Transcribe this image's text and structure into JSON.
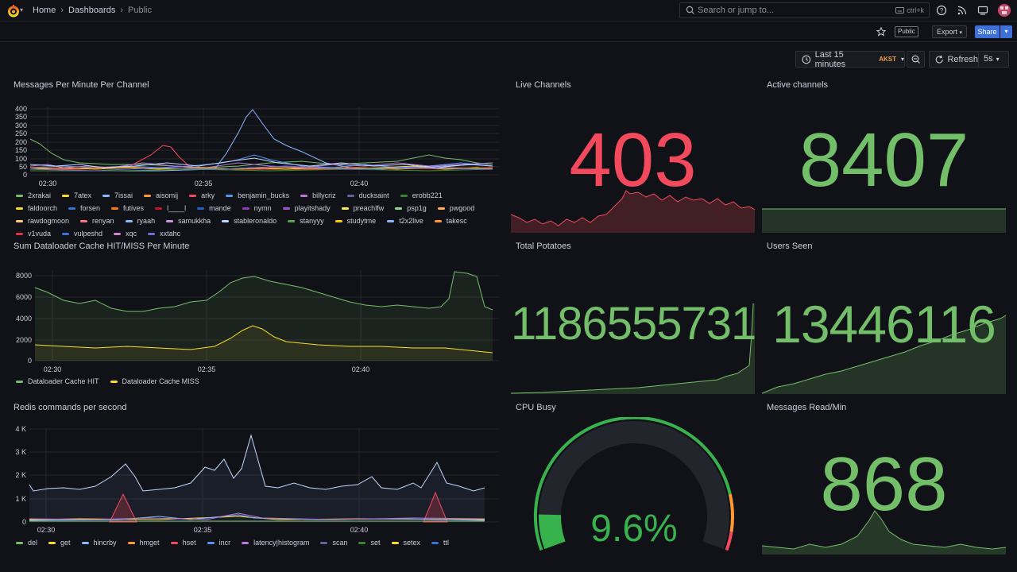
{
  "nav": {
    "breadcrumbs": [
      "Home",
      "Dashboards",
      "Public"
    ],
    "search_placeholder": "Search or jump to...",
    "search_shortcut": "ctrl+k"
  },
  "toolbar": {
    "public_tag": "Public",
    "export_label": "Export",
    "share_label": "Share"
  },
  "time": {
    "range": "Last 15 minutes",
    "timezone": "AKST",
    "refresh_label": "Refresh",
    "interval": "5s"
  },
  "colors": {
    "green": "#73bf69",
    "red": "#f2495c",
    "yellow": "#fade2a",
    "orange": "#ff9830",
    "blue": "#5794f2"
  },
  "panels": {
    "messages": {
      "title": "Messages Per Minute Per Channel",
      "y_ticks": [
        "400",
        "350",
        "300",
        "250",
        "200",
        "150",
        "100",
        "50",
        "0"
      ],
      "x_ticks": [
        "02:30",
        "02:35",
        "02:40"
      ],
      "legend": [
        {
          "name": "2xrakai",
          "color": "#73bf69"
        },
        {
          "name": "7atex",
          "color": "#fade2a"
        },
        {
          "name": "7issai",
          "color": "#8ab8ff"
        },
        {
          "name": "aisomij",
          "color": "#ff9830"
        },
        {
          "name": "arky",
          "color": "#f2495c"
        },
        {
          "name": "benjamin_bucks",
          "color": "#5794f2"
        },
        {
          "name": "billycriz",
          "color": "#b877d9"
        },
        {
          "name": "ducksaint",
          "color": "#705da0"
        },
        {
          "name": "erobb221",
          "color": "#37872d"
        },
        {
          "name": "faldoorch",
          "color": "#fade2a"
        },
        {
          "name": "forsen",
          "color": "#3274d9"
        },
        {
          "name": "futives",
          "color": "#ff780a"
        },
        {
          "name": "l____l",
          "color": "#c4162a"
        },
        {
          "name": "mande",
          "color": "#1f60c4"
        },
        {
          "name": "nymn",
          "color": "#8f3bb8"
        },
        {
          "name": "playitshady",
          "color": "#a352cc"
        },
        {
          "name": "preachlfw",
          "color": "#ffee52"
        },
        {
          "name": "psp1g",
          "color": "#96d98d"
        },
        {
          "name": "pwgood",
          "color": "#ffb357"
        },
        {
          "name": "rawdogmoon",
          "color": "#ffcb7d"
        },
        {
          "name": "renyan",
          "color": "#ff7383"
        },
        {
          "name": "ryaah",
          "color": "#8ab8ff"
        },
        {
          "name": "samukkha",
          "color": "#ca95e5"
        },
        {
          "name": "stableronaldo",
          "color": "#c0d8ff"
        },
        {
          "name": "stanyyy",
          "color": "#56a64b"
        },
        {
          "name": "studytme",
          "color": "#f2cc0c"
        },
        {
          "name": "t2x2live",
          "color": "#8ab8ff"
        },
        {
          "name": "takesc",
          "color": "#ff9830"
        },
        {
          "name": "v1vuda",
          "color": "#e02f44"
        },
        {
          "name": "vulpeshd",
          "color": "#3274d9"
        },
        {
          "name": "xqc",
          "color": "#d683ce"
        },
        {
          "name": "xxtahc",
          "color": "#6e6fd6"
        }
      ]
    },
    "dataloader": {
      "title": "Sum Dataloader Cache HIT/MISS Per Minute",
      "y_ticks": [
        "8000",
        "6000",
        "4000",
        "2000",
        "0"
      ],
      "x_ticks": [
        "02:30",
        "02:35",
        "02:40"
      ],
      "legend": [
        {
          "name": "Dataloader Cache HIT",
          "color": "#73bf69"
        },
        {
          "name": "Dataloader Cache MISS",
          "color": "#fade2a"
        }
      ]
    },
    "redis": {
      "title": "Redis commands per second",
      "y_ticks": [
        "4 K",
        "3 K",
        "2 K",
        "1 K",
        "0"
      ],
      "x_ticks": [
        "02:30",
        "02:35",
        "02:40"
      ],
      "legend": [
        {
          "name": "del",
          "color": "#73bf69"
        },
        {
          "name": "get",
          "color": "#fade2a"
        },
        {
          "name": "hincrby",
          "color": "#8ab8ff"
        },
        {
          "name": "hmget",
          "color": "#ff9830"
        },
        {
          "name": "hset",
          "color": "#f2495c"
        },
        {
          "name": "incr",
          "color": "#5794f2"
        },
        {
          "name": "latency|histogram",
          "color": "#b877d9"
        },
        {
          "name": "scan",
          "color": "#705da0"
        },
        {
          "name": "set",
          "color": "#37872d"
        },
        {
          "name": "setex",
          "color": "#fade2a"
        },
        {
          "name": "ttl",
          "color": "#3274d9"
        }
      ]
    },
    "live_channels": {
      "title": "Live Channels",
      "value": "403"
    },
    "active_channels": {
      "title": "Active channels",
      "value": "8407"
    },
    "total_potatoes": {
      "title": "Total Potatoes",
      "value": "1186555731"
    },
    "users_seen": {
      "title": "Users Seen",
      "value": "13446116"
    },
    "cpu_busy": {
      "title": "CPU Busy",
      "value": "9.6%",
      "fraction": 0.096
    },
    "messages_read": {
      "title": "Messages Read/Min",
      "value": "868"
    }
  }
}
